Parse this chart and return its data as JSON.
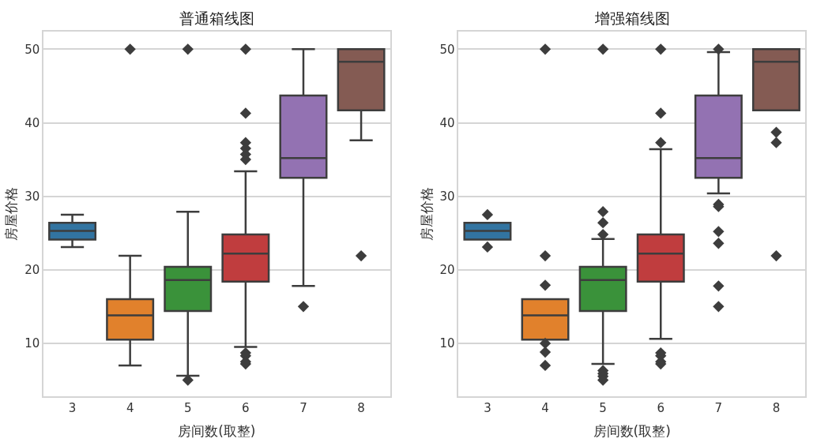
{
  "chart_data": [
    {
      "type": "box",
      "title": "普通箱线图",
      "xlabel": "房间数(取整)",
      "ylabel": "房屋价格",
      "categories": [
        "3",
        "4",
        "5",
        "6",
        "7",
        "8"
      ],
      "colors": [
        "#3274a1",
        "#e1812c",
        "#3a923a",
        "#c03d3e",
        "#9372b2",
        "#845b53"
      ],
      "boxes": [
        {
          "low": 23.1,
          "q1": 24.1,
          "median": 25.3,
          "q3": 26.4,
          "high": 27.5
        },
        {
          "low": 7.0,
          "q1": 10.5,
          "median": 13.8,
          "q3": 16.0,
          "high": 21.9,
          "outliers": [
            50
          ]
        },
        {
          "low": 5.6,
          "q1": 14.4,
          "median": 18.6,
          "q3": 20.4,
          "high": 27.9,
          "outliers": [
            50,
            5.0
          ]
        },
        {
          "low": 9.5,
          "q1": 18.4,
          "median": 22.2,
          "q3": 24.8,
          "high": 33.4,
          "outliers": [
            50,
            41.3,
            37.3,
            36.5,
            35.7,
            35.0,
            8.7,
            8.3,
            7.5,
            7.2
          ]
        },
        {
          "low": 17.8,
          "q1": 32.5,
          "median": 35.2,
          "q3": 43.7,
          "high": 50,
          "outliers": [
            15.0
          ]
        },
        {
          "low": 37.6,
          "q1": 41.7,
          "median": 48.3,
          "q3": 50,
          "high": 50,
          "outliers": [
            21.9
          ]
        }
      ],
      "ylim": [
        2.8,
        52.4
      ],
      "yticks": [
        10,
        20,
        30,
        40,
        50
      ],
      "grid": "y",
      "marker": "diamond"
    },
    {
      "type": "box",
      "title": "增强箱线图",
      "xlabel": "房间数(取整)",
      "ylabel": "房屋价格",
      "categories": [
        "3",
        "4",
        "5",
        "6",
        "7",
        "8"
      ],
      "colors": [
        "#3274a1",
        "#e1812c",
        "#3a923a",
        "#c03d3e",
        "#9372b2",
        "#845b53"
      ],
      "boxes": [
        {
          "low": 24.1,
          "q1": 24.1,
          "median": 25.3,
          "q3": 26.4,
          "high": 26.4,
          "outliers": [
            27.5,
            23.1
          ]
        },
        {
          "low": 10.5,
          "q1": 10.5,
          "median": 13.8,
          "q3": 16.0,
          "high": 16.0,
          "outliers": [
            50,
            21.9,
            17.9,
            10.0,
            8.8,
            7.0
          ]
        },
        {
          "low": 7.2,
          "q1": 14.4,
          "median": 18.6,
          "q3": 20.4,
          "high": 24.2,
          "outliers": [
            50,
            27.9,
            26.4,
            24.8,
            6.3,
            5.9,
            5.5,
            5.0
          ]
        },
        {
          "low": 10.6,
          "q1": 18.4,
          "median": 22.2,
          "q3": 24.8,
          "high": 36.4,
          "outliers": [
            50,
            41.3,
            37.3,
            8.7,
            8.3,
            7.5,
            7.2
          ]
        },
        {
          "low": 30.4,
          "q1": 32.5,
          "median": 35.2,
          "q3": 43.7,
          "high": 49.6,
          "outliers": [
            50,
            28.9,
            28.6,
            25.2,
            23.6,
            17.8,
            15.0
          ]
        },
        {
          "low": 41.7,
          "q1": 41.7,
          "median": 48.3,
          "q3": 50,
          "high": 50,
          "outliers": [
            38.7,
            37.3,
            21.9
          ]
        }
      ],
      "ylim": [
        2.8,
        52.4
      ],
      "yticks": [
        10,
        20,
        30,
        40,
        50
      ],
      "grid": "y",
      "marker": "diamond"
    }
  ]
}
